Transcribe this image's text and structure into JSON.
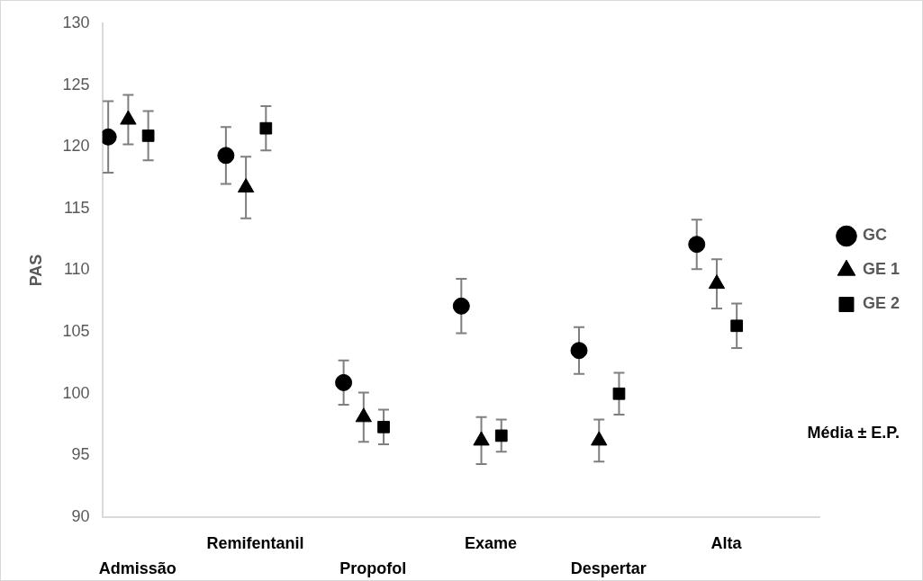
{
  "chart_data": {
    "type": "scatter",
    "ylabel": "PAS",
    "categories": [
      "Admissão",
      "Remifentanil",
      "Propofol",
      "Exame",
      "Despertar",
      "Alta"
    ],
    "series": [
      {
        "name": "GC",
        "color": "#000000",
        "marker": "circle",
        "values": [
          120.8,
          119.3,
          100.9,
          107.1,
          103.5,
          112.1
        ],
        "errors": [
          2.9,
          2.3,
          1.8,
          2.2,
          1.9,
          2.0
        ]
      },
      {
        "name": "GE 1",
        "color": "#000000",
        "marker": "triangle",
        "values": [
          122.2,
          116.7,
          98.1,
          96.2,
          96.2,
          108.9
        ],
        "errors": [
          2.0,
          2.5,
          2.0,
          1.9,
          1.7,
          2.0
        ]
      },
      {
        "name": "GE 2",
        "color": "#000000",
        "marker": "square",
        "values": [
          120.9,
          121.5,
          97.3,
          96.6,
          100.0,
          105.5
        ],
        "errors": [
          2.0,
          1.8,
          1.4,
          1.3,
          1.7,
          1.8
        ]
      }
    ],
    "ylim": [
      90,
      130
    ],
    "yticks": [
      90,
      95,
      100,
      105,
      110,
      115,
      120,
      125,
      130
    ],
    "grid": false,
    "legend": "right",
    "annotations": [
      "Média ± E.P."
    ]
  }
}
